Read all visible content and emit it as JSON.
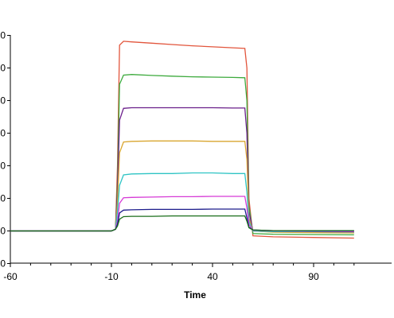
{
  "chart_data": {
    "type": "line",
    "title": "",
    "xlabel": "Time",
    "ylabel": "",
    "xlim": [
      -60,
      115
    ],
    "ylim": [
      -10,
      60
    ],
    "x_ticks": [
      "-60",
      "-10",
      "40",
      "90"
    ],
    "grid": false,
    "legend": "none",
    "note": "Y-axis tick labels are cropped at the left edge of the image (only their trailing digit is visible).",
    "series": [
      {
        "color": "#e2553c",
        "points": [
          [
            -60,
            0
          ],
          [
            -10,
            0
          ],
          [
            -8,
            0.5
          ],
          [
            -7,
            20
          ],
          [
            -6,
            57
          ],
          [
            -4,
            58.2
          ],
          [
            0,
            58
          ],
          [
            10,
            57.6
          ],
          [
            20,
            57.2
          ],
          [
            30,
            56.8
          ],
          [
            40,
            56.5
          ],
          [
            50,
            56.2
          ],
          [
            56,
            56
          ],
          [
            57,
            50
          ],
          [
            58,
            10
          ],
          [
            60,
            -1.5
          ],
          [
            70,
            -1.8
          ],
          [
            90,
            -2
          ],
          [
            110,
            -2.2
          ]
        ]
      },
      {
        "color": "#3daa3d",
        "points": [
          [
            -60,
            0
          ],
          [
            -10,
            0
          ],
          [
            -8,
            0.5
          ],
          [
            -7,
            15
          ],
          [
            -6,
            45
          ],
          [
            -4,
            47.8
          ],
          [
            0,
            48
          ],
          [
            10,
            47.7
          ],
          [
            20,
            47.5
          ],
          [
            30,
            47.3
          ],
          [
            40,
            47.2
          ],
          [
            50,
            47.1
          ],
          [
            56,
            47
          ],
          [
            57,
            40
          ],
          [
            58,
            8
          ],
          [
            60,
            -0.8
          ],
          [
            70,
            -1
          ],
          [
            90,
            -1.1
          ],
          [
            110,
            -1.2
          ]
        ]
      },
      {
        "color": "#6a1f8a",
        "points": [
          [
            -60,
            0
          ],
          [
            -10,
            0
          ],
          [
            -8,
            0.5
          ],
          [
            -7,
            12
          ],
          [
            -6,
            34
          ],
          [
            -4,
            37.6
          ],
          [
            0,
            37.8
          ],
          [
            10,
            37.8
          ],
          [
            20,
            37.8
          ],
          [
            30,
            37.8
          ],
          [
            40,
            37.8
          ],
          [
            50,
            37.7
          ],
          [
            56,
            37.7
          ],
          [
            57,
            30
          ],
          [
            58,
            6
          ],
          [
            60,
            0
          ],
          [
            70,
            -0.3
          ],
          [
            90,
            -0.4
          ],
          [
            110,
            -0.5
          ]
        ]
      },
      {
        "color": "#d9a630",
        "points": [
          [
            -60,
            0
          ],
          [
            -10,
            0
          ],
          [
            -8,
            0.5
          ],
          [
            -7,
            9
          ],
          [
            -6,
            24
          ],
          [
            -4,
            27.3
          ],
          [
            0,
            27.5
          ],
          [
            10,
            27.6
          ],
          [
            20,
            27.6
          ],
          [
            30,
            27.6
          ],
          [
            40,
            27.5
          ],
          [
            50,
            27.5
          ],
          [
            56,
            27.5
          ],
          [
            57,
            22
          ],
          [
            58,
            4
          ],
          [
            60,
            0
          ],
          [
            70,
            -0.4
          ],
          [
            90,
            -0.5
          ],
          [
            110,
            -0.6
          ]
        ]
      },
      {
        "color": "#2ec4c4",
        "points": [
          [
            -60,
            0
          ],
          [
            -10,
            0
          ],
          [
            -8,
            0.5
          ],
          [
            -7,
            6
          ],
          [
            -6,
            14
          ],
          [
            -4,
            17.2
          ],
          [
            0,
            17.5
          ],
          [
            10,
            17.6
          ],
          [
            20,
            17.6
          ],
          [
            30,
            17.8
          ],
          [
            40,
            17.8
          ],
          [
            50,
            17.6
          ],
          [
            56,
            17.6
          ],
          [
            57,
            12
          ],
          [
            58,
            3
          ],
          [
            60,
            0
          ],
          [
            70,
            -0.2
          ],
          [
            90,
            -0.2
          ],
          [
            110,
            -0.3
          ]
        ]
      },
      {
        "color": "#d63ad6",
        "points": [
          [
            -60,
            0
          ],
          [
            -10,
            0
          ],
          [
            -8,
            0.5
          ],
          [
            -7,
            3
          ],
          [
            -6,
            8.5
          ],
          [
            -4,
            10.2
          ],
          [
            0,
            10.3
          ],
          [
            10,
            10.4
          ],
          [
            20,
            10.5
          ],
          [
            30,
            10.5
          ],
          [
            40,
            10.6
          ],
          [
            50,
            10.6
          ],
          [
            56,
            10.6
          ],
          [
            57,
            7
          ],
          [
            58,
            2
          ],
          [
            60,
            0.2
          ],
          [
            70,
            0
          ],
          [
            90,
            -0.1
          ],
          [
            110,
            -0.2
          ]
        ]
      },
      {
        "color": "#1c1c8c",
        "points": [
          [
            -60,
            0
          ],
          [
            -10,
            0
          ],
          [
            -8,
            0.5
          ],
          [
            -7,
            2
          ],
          [
            -6,
            5.5
          ],
          [
            -4,
            6.4
          ],
          [
            0,
            6.5
          ],
          [
            10,
            6.6
          ],
          [
            20,
            6.6
          ],
          [
            30,
            6.6
          ],
          [
            40,
            6.7
          ],
          [
            50,
            6.7
          ],
          [
            56,
            6.7
          ],
          [
            57,
            4
          ],
          [
            58,
            1.2
          ],
          [
            60,
            0.3
          ],
          [
            70,
            0.1
          ],
          [
            90,
            0
          ],
          [
            110,
            0
          ]
        ]
      },
      {
        "color": "#1a6e1a",
        "points": [
          [
            -60,
            0
          ],
          [
            -10,
            0
          ],
          [
            -8,
            0.5
          ],
          [
            -7,
            1.5
          ],
          [
            -6,
            3.6
          ],
          [
            -4,
            4.4
          ],
          [
            0,
            4.5
          ],
          [
            10,
            4.5
          ],
          [
            20,
            4.6
          ],
          [
            30,
            4.6
          ],
          [
            40,
            4.6
          ],
          [
            50,
            4.6
          ],
          [
            56,
            4.6
          ],
          [
            57,
            3
          ],
          [
            58,
            1
          ],
          [
            60,
            0.3
          ],
          [
            70,
            0.1
          ],
          [
            90,
            0.1
          ],
          [
            110,
            0.1
          ]
        ]
      }
    ]
  }
}
